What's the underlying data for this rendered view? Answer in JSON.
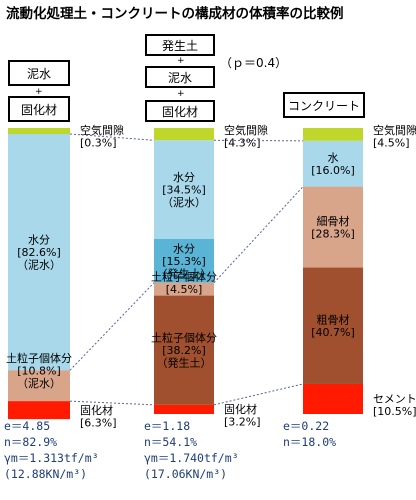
{
  "page": {
    "title": "流動化処理土・コンクリートの構成材の体積率の比較例"
  },
  "headers": {
    "col1": [
      "泥水",
      "+",
      "固化材"
    ],
    "col2": [
      "発生土",
      "+",
      "泥水",
      "+",
      "固化材"
    ],
    "col2_p": "（ｐ＝0.4）",
    "col3": [
      "コンクリート"
    ]
  },
  "colors": {
    "air": "#bfd72a",
    "water": "#a8d8ea",
    "water_soil": "#5ab4d6",
    "soil_light": "#d8a48a",
    "soil_dark": "#a0502e",
    "cement": "#ff1a00",
    "guide": "#5560a8"
  },
  "chart_data": {
    "type": "bar",
    "stacked": true,
    "unit": "%",
    "categories": [
      "泥水+固化材",
      "発生土+泥水+固化材",
      "コンクリート"
    ],
    "columns": [
      {
        "segments": [
          {
            "name": "空気間隙",
            "value": 0.3,
            "label": [
              "空気間隙",
              "[0.3%]"
            ],
            "color": "air"
          },
          {
            "name": "水分（泥水）",
            "value": 82.6,
            "label": [
              "水分",
              "[82.6%]",
              "（泥水）"
            ],
            "color": "water"
          },
          {
            "name": "土粒子個体分（泥水）",
            "value": 10.8,
            "label": [
              "土粒子個体分",
              "[10.8%]",
              "（泥水）"
            ],
            "color": "soil_light"
          },
          {
            "name": "固化材",
            "value": 6.3,
            "label": [
              "固化材",
              "[6.3%]"
            ],
            "color": "cement"
          }
        ],
        "stats": [
          "e＝4.85",
          "n＝82.9%",
          "γm＝1.313tf/m³",
          "(12.88KN/m³)"
        ]
      },
      {
        "segments": [
          {
            "name": "空気間隙",
            "value": 4.3,
            "label": [
              "空気間隙",
              "[4.3%]"
            ],
            "color": "air"
          },
          {
            "name": "水分（泥水）",
            "value": 34.5,
            "label": [
              "水分",
              "[34.5%]",
              "（泥水）"
            ],
            "color": "water"
          },
          {
            "name": "水分（発生土）",
            "value": 15.3,
            "label": [
              "水分",
              "[15.3%]",
              "（発生土）"
            ],
            "color": "water_soil"
          },
          {
            "name": "土粒子個体分（泥水）",
            "value": 4.5,
            "label": [
              "土粒子個体分",
              "[4.5%]",
              "（泥水）"
            ],
            "color": "soil_light"
          },
          {
            "name": "土粒子個体分（発生土）",
            "value": 38.2,
            "label": [
              "土粒子個体分",
              "[38.2%]",
              "（発生土）"
            ],
            "color": "soil_dark"
          },
          {
            "name": "固化材",
            "value": 3.2,
            "label": [
              "固化材",
              "[3.2%]"
            ],
            "color": "cement"
          }
        ],
        "stats": [
          "e＝1.18",
          "n＝54.1%",
          "γm＝1.740tf/m³",
          "(17.06KN/m³)"
        ]
      },
      {
        "segments": [
          {
            "name": "空気間隙",
            "value": 4.5,
            "label": [
              "空気間隙",
              "[4.5%]"
            ],
            "color": "air"
          },
          {
            "name": "水",
            "value": 16.0,
            "label": [
              "水",
              "[16.0%]"
            ],
            "color": "water"
          },
          {
            "name": "細骨材",
            "value": 28.3,
            "label": [
              "細骨材",
              "[28.3%]"
            ],
            "color": "soil_light"
          },
          {
            "name": "粗骨材",
            "value": 40.7,
            "label": [
              "粗骨材",
              "[40.7%]"
            ],
            "color": "soil_dark"
          },
          {
            "name": "セメント",
            "value": 10.5,
            "label": [
              "セメント",
              "[10.5%]"
            ],
            "color": "cement"
          }
        ],
        "stats": [
          "e＝0.22",
          "n＝18.0%"
        ]
      }
    ]
  }
}
